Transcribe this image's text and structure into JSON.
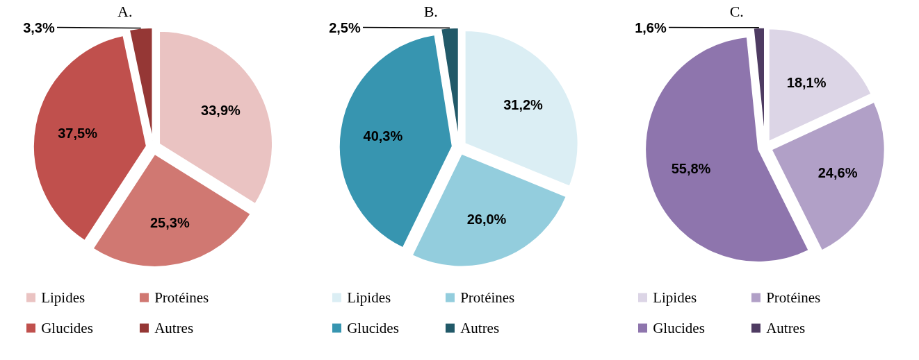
{
  "chart_data": [
    {
      "type": "pie",
      "title": "A.",
      "categories": [
        "Lipides",
        "Protéines",
        "Glucides",
        "Autres"
      ],
      "values": [
        33.9,
        25.3,
        37.5,
        3.3
      ],
      "colors": [
        "#eac3c2",
        "#d07872",
        "#c0504d",
        "#953735"
      ],
      "value_labels": [
        "33,9%",
        "25,3%",
        "37,5%",
        "3,3%"
      ],
      "legend": "bottom"
    },
    {
      "type": "pie",
      "title": "B.",
      "categories": [
        "Lipides",
        "Protéines",
        "Glucides",
        "Autres"
      ],
      "values": [
        31.2,
        26.0,
        40.3,
        2.5
      ],
      "colors": [
        "#dbeef4",
        "#93cddd",
        "#3795b0",
        "#215968"
      ],
      "value_labels": [
        "31,2%",
        "26,0%",
        "40,3%",
        "2,5%"
      ],
      "legend": "bottom"
    },
    {
      "type": "pie",
      "title": "C.",
      "categories": [
        "Lipides",
        "Protéines",
        "Glucides",
        "Autres"
      ],
      "values": [
        18.1,
        24.6,
        55.8,
        1.6
      ],
      "colors": [
        "#dcd5e6",
        "#b1a0c7",
        "#8e75ad",
        "#4e3b62"
      ],
      "value_labels": [
        "18,1%",
        "24,6%",
        "55,8%",
        "1,6%"
      ],
      "legend": "bottom"
    }
  ]
}
